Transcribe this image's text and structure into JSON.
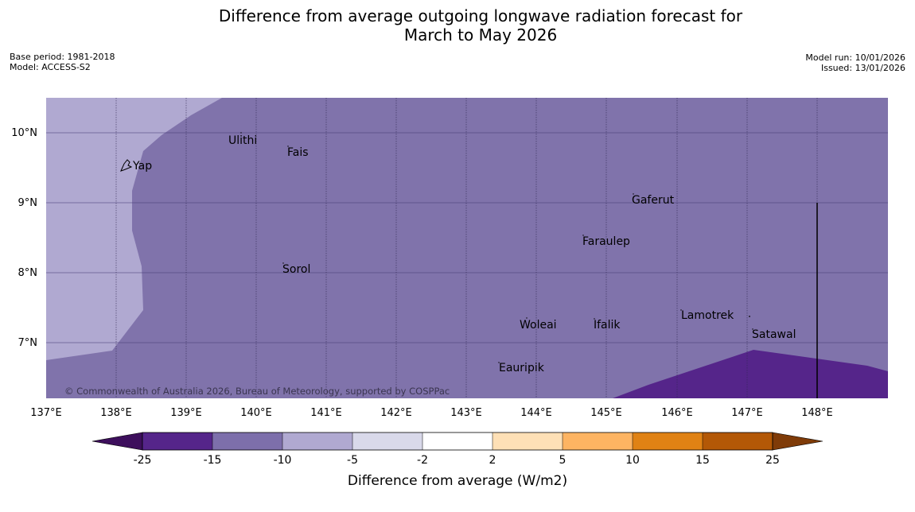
{
  "title": {
    "line1": "Difference from average outgoing longwave radiation forecast for",
    "line2": "March to May 2026"
  },
  "meta_left": {
    "base_period": "Base period: 1981-2018",
    "model": "Model: ACCESS-S2"
  },
  "meta_right": {
    "model_run": "Model run: 10/01/2026",
    "issued": "Issued: 13/01/2026"
  },
  "map": {
    "lon_labels": [
      "137°E",
      "138°E",
      "139°E",
      "140°E",
      "141°E",
      "142°E",
      "143°E",
      "144°E",
      "145°E",
      "146°E",
      "147°E",
      "148°E"
    ],
    "lat_labels": [
      "10°N",
      "9°N",
      "8°N",
      "7°N"
    ],
    "places": [
      "Ulithi",
      "Fais",
      "Yap",
      "Gaferut",
      "Faraulep",
      "Sorol",
      "Lamotrek",
      "Woleai",
      "Ifalik",
      "Satawal",
      "Eauripik"
    ],
    "copyright": "© Commonwealth of Australia 2026, Bureau of Meteorology, supported by COSPPac",
    "colors": {
      "minus_10_to_minus_15": "#8073ab",
      "minus_5_to_minus_10": "#b0a9d1",
      "minus_15_to_minus_25": "#55258a"
    }
  },
  "colorbar": {
    "ticks": [
      "-25",
      "-15",
      "-10",
      "-5",
      "-2",
      "2",
      "5",
      "10",
      "15",
      "25"
    ],
    "label": "Difference from average (W/m2)",
    "colors": [
      "#3d0f5c",
      "#55258a",
      "#7d6fab",
      "#b0a9d1",
      "#d9d9ea",
      "#ffffff",
      "#fee0b6",
      "#fdb462",
      "#e08214",
      "#b35806",
      "#7f3b08"
    ]
  }
}
